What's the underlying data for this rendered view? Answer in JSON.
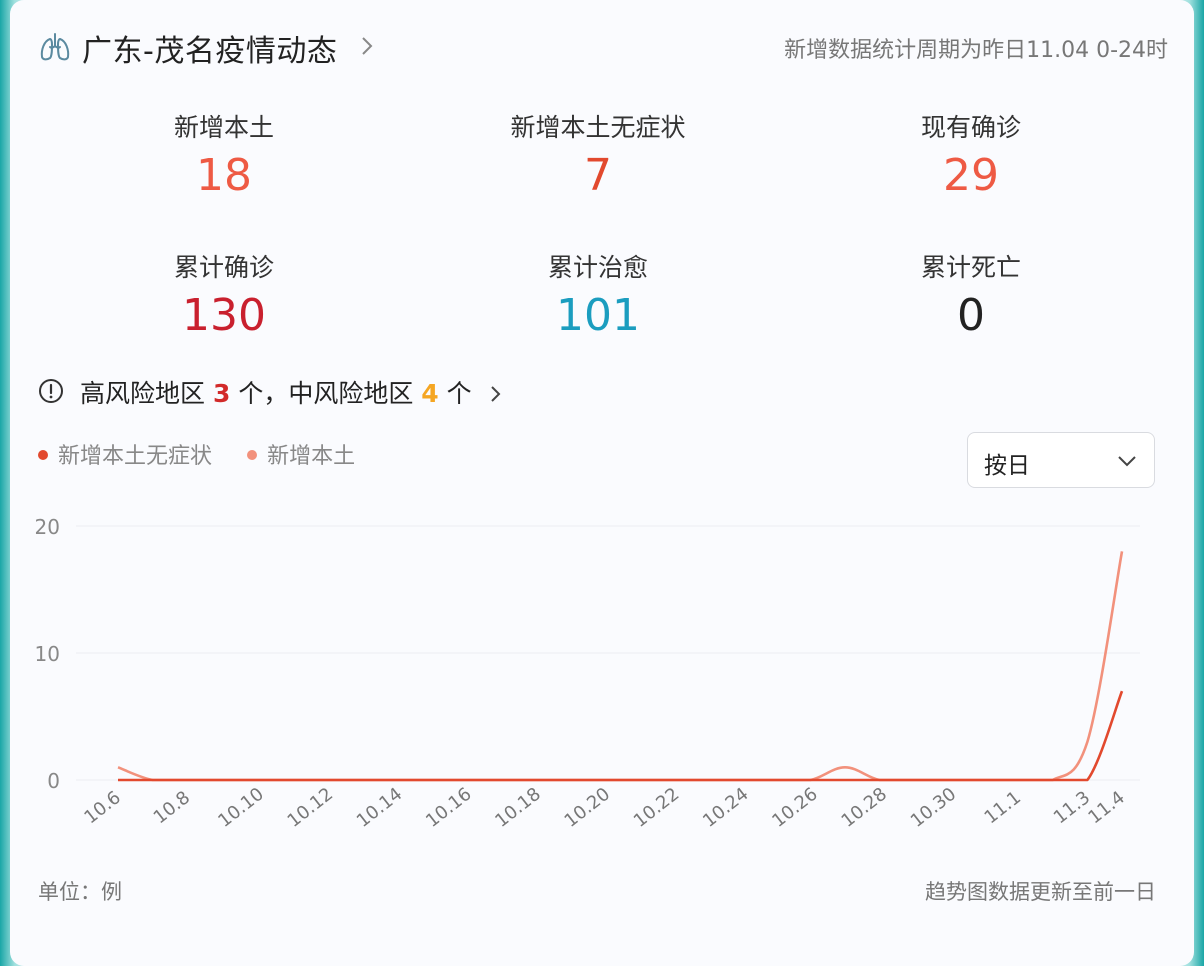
{
  "header": {
    "title": "广东-茂名疫情动态",
    "period": "新增数据统计周期为昨日11.04 0-24时"
  },
  "stats": [
    {
      "label": "新增本土",
      "value": "18",
      "color": "#ee5a44"
    },
    {
      "label": "新增本土无症状",
      "value": "7",
      "color": "#e2492e"
    },
    {
      "label": "现有确诊",
      "value": "29",
      "color": "#ee5a44"
    },
    {
      "label": "累计确诊",
      "value": "130",
      "color": "#c9202e"
    },
    {
      "label": "累计治愈",
      "value": "101",
      "color": "#1b9dbf"
    },
    {
      "label": "累计死亡",
      "value": "0",
      "color": "#222222"
    }
  ],
  "risk": {
    "prefix": "高风险地区",
    "high_count": "3",
    "middle": "个，中风险地区",
    "mid_count": "4",
    "suffix": "个"
  },
  "dropdown": {
    "selected": "按日"
  },
  "footer": {
    "unit": "单位：例",
    "note": "趋势图数据更新至前一日"
  },
  "chart_data": {
    "type": "line",
    "x": [
      "10.6",
      "10.7",
      "10.8",
      "10.9",
      "10.10",
      "10.11",
      "10.12",
      "10.13",
      "10.14",
      "10.15",
      "10.16",
      "10.17",
      "10.18",
      "10.19",
      "10.20",
      "10.21",
      "10.22",
      "10.23",
      "10.24",
      "10.25",
      "10.26",
      "10.27",
      "10.28",
      "10.29",
      "10.30",
      "10.31",
      "11.1",
      "11.2",
      "11.3",
      "11.4"
    ],
    "tick_labels": [
      "10.6",
      "10.8",
      "10.10",
      "10.12",
      "10.14",
      "10.16",
      "10.18",
      "10.20",
      "10.22",
      "10.24",
      "10.26",
      "10.28",
      "10.30",
      "11.1",
      "11.3",
      "11.4"
    ],
    "series": [
      {
        "name": "新增本土无症状",
        "color": "#e2492e",
        "values": [
          0,
          0,
          0,
          0,
          0,
          0,
          0,
          0,
          0,
          0,
          0,
          0,
          0,
          0,
          0,
          0,
          0,
          0,
          0,
          0,
          0,
          0,
          0,
          0,
          0,
          0,
          0,
          0,
          0,
          7
        ]
      },
      {
        "name": "新增本土",
        "color": "#f2917c",
        "values": [
          1,
          0,
          0,
          0,
          0,
          0,
          0,
          0,
          0,
          0,
          0,
          0,
          0,
          0,
          0,
          0,
          0,
          0,
          0,
          0,
          0,
          1,
          0,
          0,
          0,
          0,
          0,
          0,
          3,
          18
        ]
      }
    ],
    "y_ticks": [
      0,
      10,
      20
    ],
    "ylim": [
      0,
      20
    ],
    "grid": true,
    "legend": "top-left"
  }
}
